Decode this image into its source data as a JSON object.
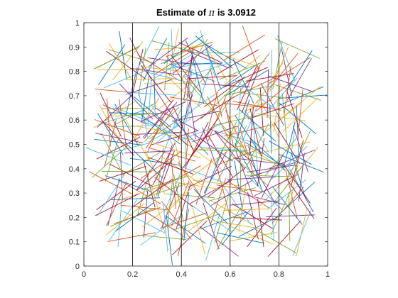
{
  "chart_data": {
    "type": "line",
    "title": "Estimate of π is 3.0912",
    "title_parts": {
      "prefix": "Estimate of ",
      "symbol": "π",
      "suffix": " is 3.0912"
    },
    "xlabel": "",
    "ylabel": "",
    "xlim": [
      0,
      1
    ],
    "ylim": [
      0,
      1
    ],
    "x_ticks": [
      0,
      0.2,
      0.4,
      0.6,
      0.8,
      1
    ],
    "x_tick_labels": [
      "0",
      "0.2",
      "0.4",
      "0.6",
      "0.8",
      "1"
    ],
    "y_ticks": [
      0,
      0.1,
      0.2,
      0.3,
      0.4,
      0.5,
      0.6,
      0.7,
      0.8,
      0.9,
      1
    ],
    "y_tick_labels": [
      "0",
      "0.1",
      "0.2",
      "0.3",
      "0.4",
      "0.5",
      "0.6",
      "0.7",
      "0.8",
      "0.9",
      "1"
    ],
    "grid": false,
    "legend": "none",
    "reference_lines": {
      "orientation": "vertical",
      "x": [
        0.2,
        0.4,
        0.6,
        0.8
      ],
      "color": "#000000"
    },
    "needles": {
      "count": 400,
      "length": 0.2,
      "color_order": [
        "#0072BD",
        "#D95319",
        "#EDB120",
        "#7E2F8E",
        "#77AC30",
        "#4DBEEE",
        "#A2142F"
      ]
    },
    "axis_color": "#262626",
    "background": "#ffffff"
  }
}
